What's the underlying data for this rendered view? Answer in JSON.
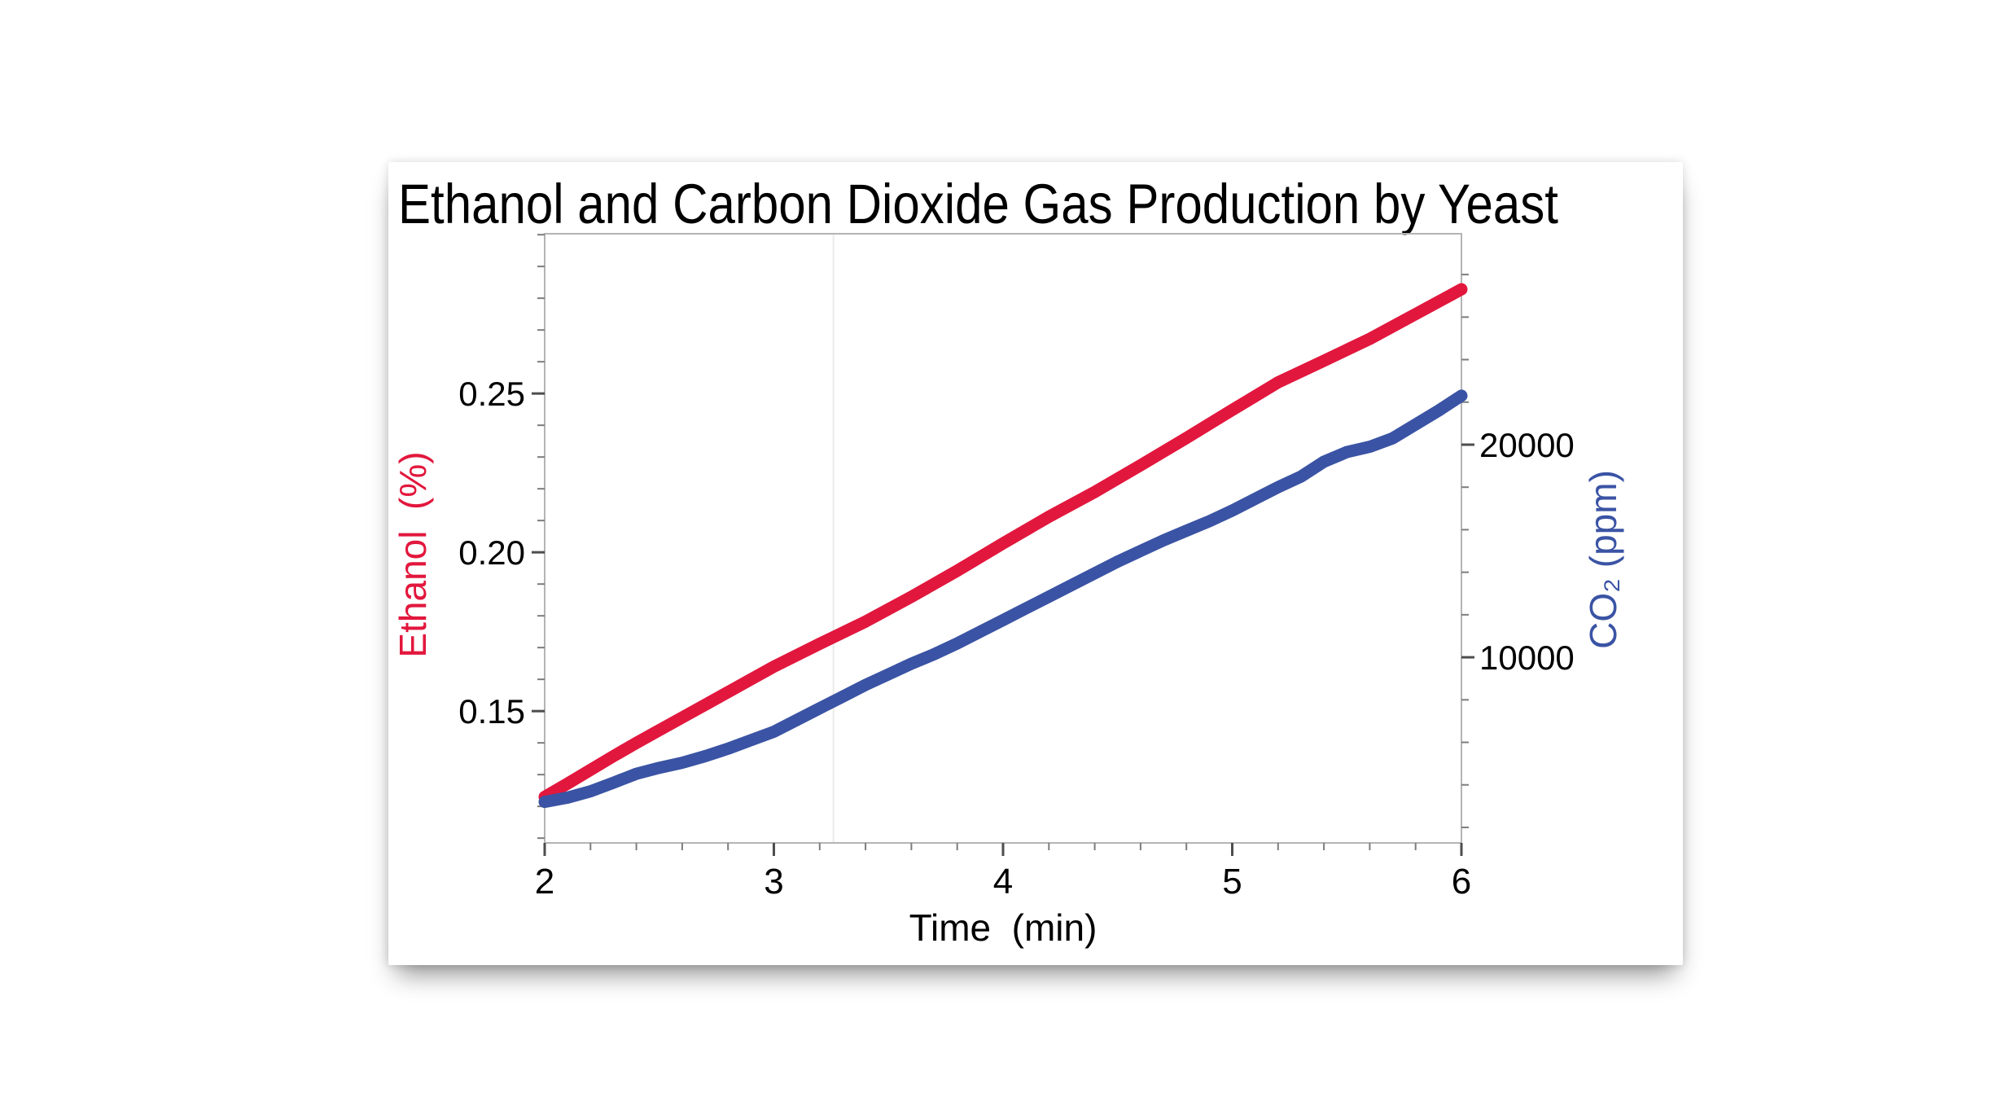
{
  "page": {
    "background": "#ffffff"
  },
  "chart_data": {
    "type": "line",
    "title": "Ethanol and Carbon Dioxide Gas Production by Yeast",
    "grid": "off",
    "legend": "none",
    "reference_line_x": 3.26,
    "x_axis": {
      "label": "Time  (min)",
      "range": [
        2,
        6
      ],
      "major_ticks": [
        2,
        3,
        4,
        5,
        6
      ],
      "tick_labels": [
        "2",
        "3",
        "4",
        "5",
        "6"
      ],
      "minor_step": 0.2
    },
    "y_axis_left": {
      "label": "Ethanol  (%)",
      "color": "#e2173d",
      "range": [
        0.1085,
        0.3003
      ],
      "major_ticks": [
        0.15,
        0.2,
        0.25
      ],
      "tick_labels": [
        "0.15",
        "0.20",
        "0.25"
      ],
      "minor_step": 0.01
    },
    "y_axis_right": {
      "label": "CO₂ (ppm)",
      "color": "#3a53a4",
      "range": [
        1270,
        29920
      ],
      "major_ticks": [
        10000,
        20000
      ],
      "tick_labels": [
        "10000",
        "20000"
      ],
      "minor_step": 2000
    },
    "series": [
      {
        "id": "ethanol-curve",
        "name": "Ethanol (%)",
        "axis": "left",
        "color": "#e2173d",
        "points": [
          [
            2.0,
            0.123
          ],
          [
            2.1,
            0.1272
          ],
          [
            2.2,
            0.1315
          ],
          [
            2.3,
            0.1358
          ],
          [
            2.4,
            0.14
          ],
          [
            2.5,
            0.144
          ],
          [
            2.6,
            0.148
          ],
          [
            2.7,
            0.152
          ],
          [
            2.8,
            0.156
          ],
          [
            2.9,
            0.16
          ],
          [
            3.0,
            0.164
          ],
          [
            3.2,
            0.1712
          ],
          [
            3.4,
            0.1782
          ],
          [
            3.6,
            0.186
          ],
          [
            3.8,
            0.1942
          ],
          [
            4.0,
            0.2028
          ],
          [
            4.2,
            0.2112
          ],
          [
            4.4,
            0.219
          ],
          [
            4.6,
            0.2274
          ],
          [
            4.8,
            0.236
          ],
          [
            5.0,
            0.2448
          ],
          [
            5.2,
            0.2535
          ],
          [
            5.4,
            0.2603
          ],
          [
            5.6,
            0.2672
          ],
          [
            5.8,
            0.275
          ],
          [
            6.0,
            0.2828
          ]
        ]
      },
      {
        "id": "co2-curve",
        "name": "CO₂ (ppm)",
        "axis": "right",
        "color": "#3a53a4",
        "points": [
          [
            2.0,
            3200
          ],
          [
            2.1,
            3400
          ],
          [
            2.2,
            3700
          ],
          [
            2.3,
            4100
          ],
          [
            2.4,
            4520
          ],
          [
            2.5,
            4800
          ],
          [
            2.6,
            5040
          ],
          [
            2.7,
            5350
          ],
          [
            2.8,
            5700
          ],
          [
            2.9,
            6100
          ],
          [
            3.0,
            6500
          ],
          [
            3.1,
            7050
          ],
          [
            3.2,
            7600
          ],
          [
            3.3,
            8150
          ],
          [
            3.4,
            8700
          ],
          [
            3.5,
            9200
          ],
          [
            3.6,
            9700
          ],
          [
            3.7,
            10150
          ],
          [
            3.8,
            10650
          ],
          [
            3.9,
            11200
          ],
          [
            4.0,
            11750
          ],
          [
            4.1,
            12300
          ],
          [
            4.2,
            12850
          ],
          [
            4.3,
            13400
          ],
          [
            4.4,
            13950
          ],
          [
            4.5,
            14500
          ],
          [
            4.6,
            15000
          ],
          [
            4.7,
            15500
          ],
          [
            4.8,
            15950
          ],
          [
            4.9,
            16400
          ],
          [
            5.0,
            16900
          ],
          [
            5.1,
            17450
          ],
          [
            5.2,
            18000
          ],
          [
            5.3,
            18500
          ],
          [
            5.4,
            19200
          ],
          [
            5.5,
            19650
          ],
          [
            5.6,
            19900
          ],
          [
            5.7,
            20300
          ],
          [
            5.8,
            20950
          ],
          [
            5.9,
            21600
          ],
          [
            6.0,
            22300
          ]
        ]
      }
    ]
  }
}
